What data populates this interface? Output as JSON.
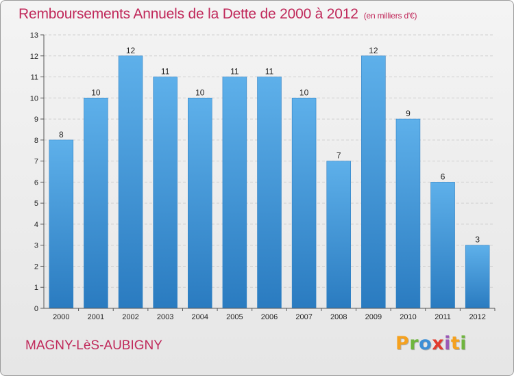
{
  "header": {
    "title": "Remboursements Annuels de la Dette de 2000 à 2012",
    "unit": "(en milliers d'€)"
  },
  "footer": {
    "commune": "MAGNY-LèS-AUBIGNY",
    "logo": [
      "P",
      "r",
      "o",
      "x",
      "i",
      "t",
      "i"
    ]
  },
  "colors": {
    "title": "#c0285a",
    "bar_top": "#5eb0ea",
    "bar_bottom": "#2a7bc0"
  },
  "chart_data": {
    "type": "bar",
    "title": "Remboursements Annuels de la Dette de 2000 à 2012",
    "xlabel": "",
    "ylabel": "",
    "categories": [
      "2000",
      "2001",
      "2002",
      "2003",
      "2004",
      "2005",
      "2006",
      "2007",
      "2008",
      "2009",
      "2010",
      "2011",
      "2012"
    ],
    "values": [
      8,
      10,
      12,
      11,
      10,
      11,
      11,
      10,
      7,
      12,
      9,
      6,
      3
    ],
    "ylim": [
      0,
      13
    ],
    "yticks": [
      0,
      1,
      2,
      3,
      4,
      5,
      6,
      7,
      8,
      9,
      10,
      11,
      12,
      13
    ],
    "grid": true,
    "legend": "none"
  }
}
